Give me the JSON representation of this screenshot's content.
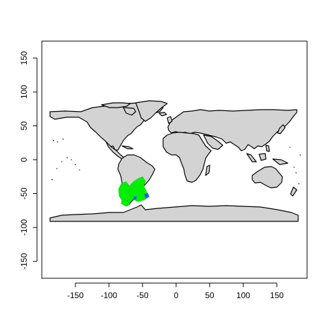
{
  "colors": {
    "background": "#ffffff",
    "land": "#d3d3d3",
    "coastline": "#000000",
    "range_primary": "#00ee00",
    "range_secondary": "#3355ff"
  },
  "chart_data": {
    "type": "map",
    "title": "",
    "xlabel": "",
    "ylabel": "",
    "xlim": [
      -200,
      195
    ],
    "ylim": [
      -175,
      175
    ],
    "x_ticks": [
      -150,
      -100,
      -50,
      0,
      50,
      100,
      150
    ],
    "y_ticks": [
      150,
      100,
      50,
      0,
      -50,
      -100,
      -150
    ],
    "grid": false,
    "legend": "none",
    "basemap": "world coastlines, land filled gray",
    "highlighted_region": {
      "description": "Southern South America (Patagonia)",
      "lon_range": [
        -76,
        -48
      ],
      "lat_range": [
        -56,
        -26
      ],
      "colors": [
        "green",
        "blue"
      ]
    }
  }
}
